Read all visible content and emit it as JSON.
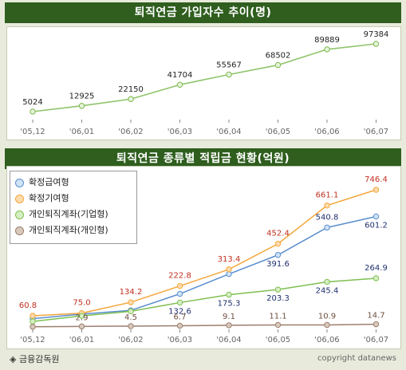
{
  "footer": {
    "source": "◈ 금융감독원",
    "copyright": "copyright datanews"
  },
  "chart_data": [
    {
      "type": "line",
      "title": "퇴직연금 가입자수 추이(명)",
      "categories": [
        "'05,12",
        "'06,01",
        "'06,02",
        "'06,03",
        "'06,04",
        "'06,05",
        "'06,06",
        "'06,07"
      ],
      "series": [
        {
          "values": [
            5024,
            12925,
            22150,
            41704,
            55567,
            68502,
            89889,
            97384
          ]
        }
      ],
      "ylim": [
        0,
        100000
      ],
      "grid": false
    },
    {
      "type": "line",
      "title": "퇴직연금 종류별 적립금 현황(억원)",
      "categories": [
        "'05,12",
        "'06,01",
        "'06,02",
        "'06,03",
        "'06,04",
        "'06,05",
        "'06,06",
        "'06,07"
      ],
      "legend_position": "top-left",
      "ylim": [
        0,
        750
      ],
      "grid": false,
      "series": [
        {
          "name": "확정급여형",
          "color": "#5b8ecf",
          "fill": "#cfe4f6",
          "label_color": "#1f2f6e",
          "values": [
            null,
            null,
            null,
            null,
            null,
            391.6,
            540.8,
            601.2
          ],
          "plot_values": [
            45,
            70,
            90,
            180,
            288,
            391.6,
            540.8,
            601.2
          ]
        },
        {
          "name": "확정기여형",
          "color": "#f4a63b",
          "fill": "#fddcae",
          "label_color": "#c0301f",
          "values": [
            60.8,
            75.0,
            134.2,
            222.8,
            313.4,
            452.4,
            661.1,
            746.4
          ]
        },
        {
          "name": "개인퇴직계좌(기업형)",
          "color": "#7fbf52",
          "fill": "#d6efc2",
          "label_color": "#1f2f6e",
          "values": [
            null,
            null,
            null,
            132.6,
            175.3,
            203.3,
            245.4,
            264.9
          ],
          "plot_values": [
            30,
            60,
            85,
            132.6,
            175.3,
            203.3,
            245.4,
            264.9
          ]
        },
        {
          "name": "개인퇴직계좌(개인형)",
          "color": "#9c7f6e",
          "fill": "#d9c9bd",
          "label_color": "#6e5040",
          "values": [
            null,
            2.9,
            4.5,
            6.7,
            9.1,
            11.1,
            10.9,
            14.7
          ],
          "plot_values": [
            1,
            2.9,
            4.5,
            6.7,
            9.1,
            11.1,
            10.9,
            14.7
          ]
        }
      ]
    }
  ]
}
